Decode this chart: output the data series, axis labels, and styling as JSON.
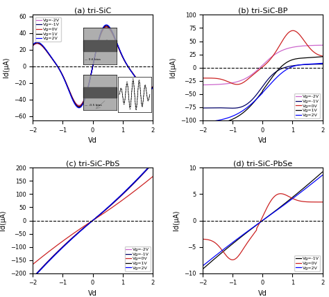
{
  "panel_a": {
    "title": "(a) tri-SiC",
    "xlabel": "Vd",
    "ylabel": "Id(μA)",
    "ylim": [
      -65,
      62
    ],
    "yticks": [
      -60,
      -40,
      -20,
      0,
      20,
      40,
      60
    ],
    "xlim": [
      -2,
      2
    ],
    "colors": [
      "#cc66cc",
      "#000066",
      "#cc2222",
      "#000000",
      "#0000ff"
    ],
    "labels": [
      "Vg=-2V",
      "Vg=-1V",
      "Vg=0V",
      "Vg=1V",
      "Vg=2V"
    ]
  },
  "panel_b": {
    "title": "(b) tri-SiC-BP",
    "xlabel": "Vd",
    "ylabel": "Id(μA)",
    "ylim": [
      -100,
      100
    ],
    "yticks": [
      -100,
      -75,
      -50,
      -25,
      0,
      25,
      50,
      75,
      100
    ],
    "xlim": [
      -2,
      2
    ],
    "colors": [
      "#cc66cc",
      "#000066",
      "#cc2222",
      "#000000",
      "#0000ff"
    ],
    "labels": [
      "Vg=-2V",
      "Vg=-1V",
      "Vg=0V",
      "Vg=1V",
      "Vg=2V"
    ]
  },
  "panel_c": {
    "title": "(c) tri-SiC-PbS",
    "xlabel": "Vd",
    "ylabel": "Id(μA)",
    "ylim": [
      -200,
      200
    ],
    "yticks": [
      -200,
      -150,
      -100,
      -50,
      0,
      50,
      100,
      150,
      200
    ],
    "xlim": [
      -2,
      2
    ],
    "colors": [
      "#cc66cc",
      "#000066",
      "#cc2222",
      "#000000",
      "#0000ff"
    ],
    "labels": [
      "Vg=-2V",
      "Vg=-1V",
      "Vg=0V",
      "Vg=1V",
      "Vg=2V"
    ]
  },
  "panel_d": {
    "title": "(d) tri-SiC-PbSe",
    "xlabel": "Vd",
    "ylabel": "Id(μA)",
    "ylim": [
      -10,
      10
    ],
    "yticks": [
      -10,
      -5,
      0,
      5,
      10
    ],
    "xlim": [
      -2,
      2
    ],
    "colors": [
      "#000000",
      "#cc2222",
      "#0000ff"
    ],
    "labels": [
      "Vg=-1V",
      "Vg=0V",
      "Vg=2V"
    ]
  }
}
